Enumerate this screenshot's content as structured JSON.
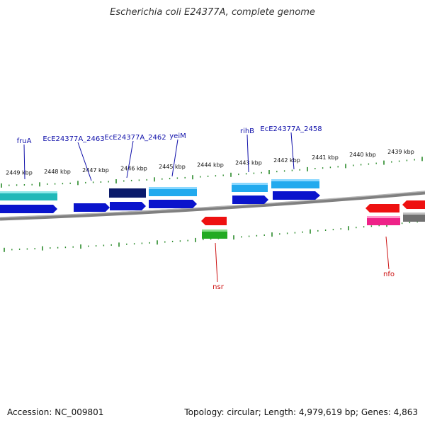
{
  "title": "Escherichia coli E24377A, complete genome",
  "footer": {
    "accession": "Accession: NC_009801",
    "stats": "Topology: circular; Length: 4,979,619 bp; Genes: 4,863"
  },
  "colors": {
    "backbone": "#808080",
    "tick": "#2a8a2a",
    "label_forward": "#1010aa",
    "label_reverse": "#cc1111"
  },
  "kbp_labels": [
    "2449 kbp",
    "2448 kbp",
    "2447 kbp",
    "2446 kbp",
    "2445 kbp",
    "2444 kbp",
    "2443 kbp",
    "2442 kbp",
    "2441 kbp",
    "2440 kbp",
    "2439 kbp"
  ],
  "gene_labels": [
    {
      "text": "fruA",
      "strand": "forward"
    },
    {
      "text": "EcE24377A_2463",
      "strand": "forward"
    },
    {
      "text": "EcE24377A_2462",
      "strand": "forward"
    },
    {
      "text": "yeiM",
      "strand": "forward"
    },
    {
      "text": "rihB",
      "strand": "forward"
    },
    {
      "text": "EcE24377A_2458",
      "strand": "forward"
    },
    {
      "text": "nsr",
      "strand": "reverse"
    },
    {
      "text": "nfo",
      "strand": "reverse"
    }
  ]
}
